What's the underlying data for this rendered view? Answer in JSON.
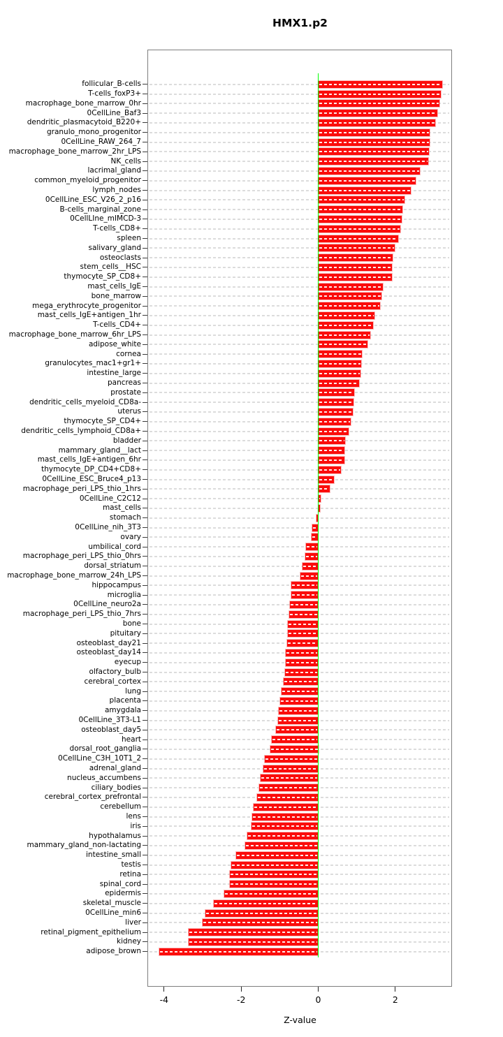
{
  "chart_data": {
    "type": "bar",
    "orientation": "horizontal",
    "title": "HMX1.p2",
    "xlabel": "Z-value",
    "xlim": [
      -4.43,
      3.49
    ],
    "x_ticks": [
      -4,
      -2,
      0,
      2
    ],
    "grid": true,
    "legend": "none",
    "bar_color": "#fb0c0b",
    "zero_line_color": "#00ff00",
    "categories": [
      "follicular_B-cells",
      "T-cells_foxP3+",
      "macrophage_bone_marrow_0hr",
      "0CellLine_Baf3",
      "dendritic_plasmacytoid_B220+",
      "granulo_mono_progenitor",
      "0CellLine_RAW_264_7",
      "macrophage_bone_marrow_2hr_LPS",
      "NK_cells",
      "lacrimal_gland",
      "common_myeloid_progenitor",
      "lymph_nodes",
      "0CellLine_ESC_V26_2_p16",
      "B-cells_marginal_zone",
      "0CellLIne_mIMCD-3",
      "T-cells_CD8+",
      "spleen",
      "salivary_gland",
      "osteoclasts",
      "stem_cells__HSC",
      "thymocyte_SP_CD8+",
      "mast_cells_IgE",
      "bone_marrow",
      "mega_erythrocyte_progenitor",
      "mast_cells_IgE+antigen_1hr",
      "T-cells_CD4+",
      "macrophage_bone_marrow_6hr_LPS",
      "adipose_white",
      "cornea",
      "granulocytes_mac1+gr1+",
      "intestine_large",
      "pancreas",
      "prostate",
      "dendritic_cells_myeloid_CD8a-",
      "uterus",
      "thymocyte_SP_CD4+",
      "dendritic_cells_lymphoid_CD8a+",
      "bladder",
      "mammary_gland__lact",
      "mast_cells_IgE+antigen_6hr",
      "thymocyte_DP_CD4+CD8+",
      "0CellLine_ESC_Bruce4_p13",
      "macrophage_peri_LPS_thio_1hrs",
      "0CellLine_C2C12",
      "mast_cells",
      "stomach",
      "0CellLine_nih_3T3",
      "ovary",
      "umbilical_cord",
      "macrophage_peri_LPS_thio_0hrs",
      "dorsal_striatum",
      "macrophage_bone_marrow_24h_LPS",
      "hippocampus",
      "microglia",
      "0CellLine_neuro2a",
      "macrophage_peri_LPS_thio_7hrs",
      "bone",
      "pituitary",
      "osteoblast_day21",
      "osteoblast_day14",
      "eyecup",
      "olfactory_bulb",
      "cerebral_cortex",
      "lung",
      "placenta",
      "amygdala",
      "0CellLine_3T3-L1",
      "osteoblast_day5",
      "heart",
      "dorsal_root_ganglia",
      "0CellLine_C3H_10T1_2",
      "adrenal_gland",
      "nucleus_accumbens",
      "ciliary_bodies",
      "cerebral_cortex_prefrontal",
      "cerebellum",
      "lens",
      "iris",
      "hypothalamus",
      "mammary_gland_non-lactating",
      "intestine_small",
      "testis",
      "retina",
      "spinal_cord",
      "epidermis",
      "skeletal_muscle",
      "0CellLine_min6",
      "liver",
      "retinal_pigment_epithelium",
      "kidney",
      "adipose_brown"
    ],
    "values": [
      3.21,
      3.18,
      3.14,
      3.1,
      3.03,
      2.9,
      2.89,
      2.87,
      2.86,
      2.63,
      2.53,
      2.41,
      2.24,
      2.19,
      2.17,
      2.13,
      2.07,
      1.98,
      1.94,
      1.92,
      1.91,
      1.68,
      1.64,
      1.61,
      1.46,
      1.43,
      1.35,
      1.28,
      1.13,
      1.12,
      1.1,
      1.06,
      0.94,
      0.92,
      0.89,
      0.85,
      0.78,
      0.69,
      0.68,
      0.68,
      0.59,
      0.4,
      0.3,
      0.07,
      0.05,
      -0.05,
      -0.16,
      -0.17,
      -0.31,
      -0.33,
      -0.4,
      -0.47,
      -0.7,
      -0.7,
      -0.73,
      -0.76,
      -0.78,
      -0.79,
      -0.8,
      -0.84,
      -0.85,
      -0.87,
      -0.9,
      -0.96,
      -0.99,
      -1.03,
      -1.04,
      -1.09,
      -1.2,
      -1.25,
      -1.39,
      -1.42,
      -1.49,
      -1.54,
      -1.58,
      -1.67,
      -1.72,
      -1.74,
      -1.84,
      -1.9,
      -2.13,
      -2.25,
      -2.29,
      -2.3,
      -2.43,
      -2.71,
      -2.92,
      -3.0,
      -3.36,
      -3.36,
      -4.13
    ]
  }
}
